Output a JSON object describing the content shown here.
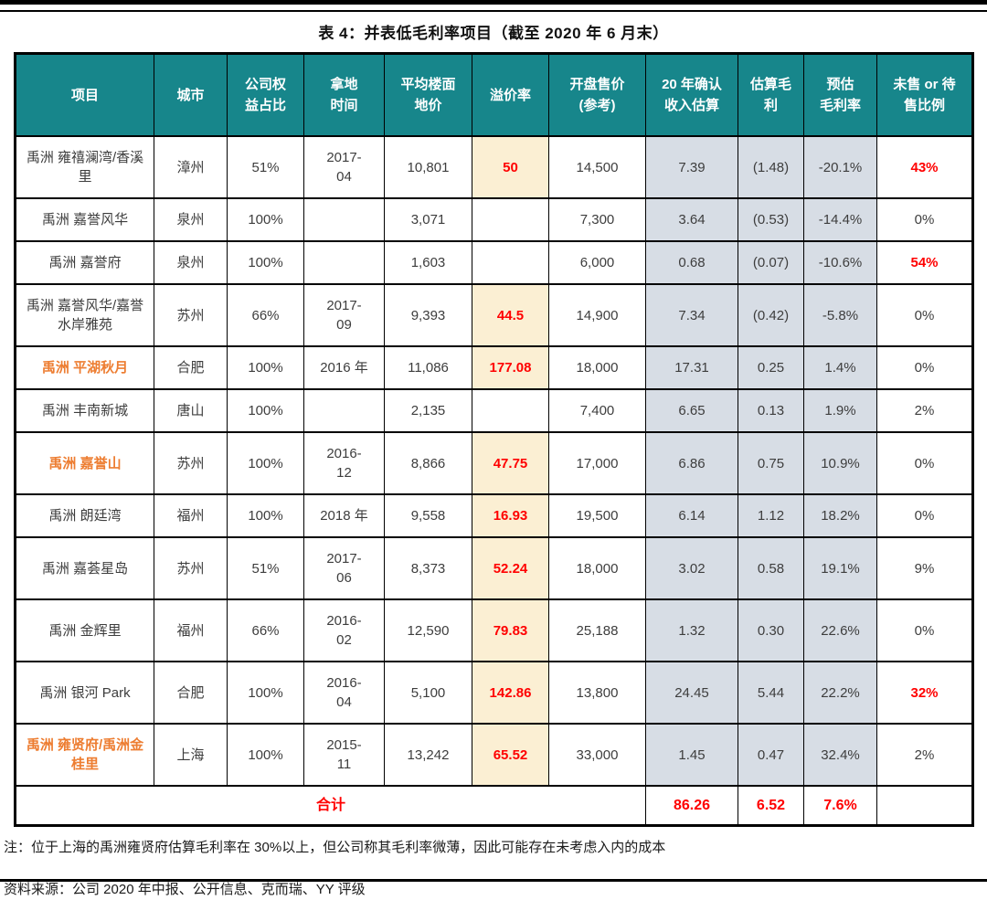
{
  "title": "表 4：并表低毛利率项目（截至 2020 年 6 月末）",
  "note": "注：位于上海的禹洲雍贤府估算毛利率在 30%以上，但公司称其毛利率微薄，因此可能存在未考虑入内的成本",
  "source": "资料来源：公司 2020 年中报、公开信息、克而瑞、YY 评级",
  "colors": {
    "header_teal": "#17868B",
    "premium_yellow": "#FBEFD3",
    "estimate_shade_blue": "#D7DDE5",
    "highlight_red": "#FF0000",
    "project_orange": "#ED7D31",
    "body_text": "#3D3D3D"
  },
  "table": {
    "columns": [
      "项目",
      "城市",
      "公司权\n益占比",
      "拿地\n时间",
      "平均楼面\n地价",
      "溢价率",
      "开盘售价\n(参考)",
      "20 年确认\n收入估算",
      "估算毛\n利",
      "预估\n毛利率",
      "未售 or 待\n售比例"
    ],
    "rows": [
      {
        "project": "禹洲 雍禧澜湾/香溪里",
        "city": "漳州",
        "equity": "51%",
        "land_date": "2017-\n04",
        "floor_price": "10,801",
        "premium": "50",
        "opening_price": "14,500",
        "revenue_2020": "7.39",
        "gross_profit": "(1.48)",
        "gross_margin": "-20.1%",
        "unsold": "43%",
        "project_orange": false,
        "unsold_red": true
      },
      {
        "project": "禹洲 嘉誉风华",
        "city": "泉州",
        "equity": "100%",
        "land_date": "",
        "floor_price": "3,071",
        "premium": "",
        "opening_price": "7,300",
        "revenue_2020": "3.64",
        "gross_profit": "(0.53)",
        "gross_margin": "-14.4%",
        "unsold": "0%",
        "project_orange": false,
        "unsold_red": false
      },
      {
        "project": "禹洲 嘉誉府",
        "city": "泉州",
        "equity": "100%",
        "land_date": "",
        "floor_price": "1,603",
        "premium": "",
        "opening_price": "6,000",
        "revenue_2020": "0.68",
        "gross_profit": "(0.07)",
        "gross_margin": "-10.6%",
        "unsold": "54%",
        "project_orange": false,
        "unsold_red": true
      },
      {
        "project": "禹洲 嘉誉风华/嘉誉水岸雅苑",
        "city": "苏州",
        "equity": "66%",
        "land_date": "2017-\n09",
        "floor_price": "9,393",
        "premium": "44.5",
        "opening_price": "14,900",
        "revenue_2020": "7.34",
        "gross_profit": "(0.42)",
        "gross_margin": "-5.8%",
        "unsold": "0%",
        "project_orange": false,
        "unsold_red": false
      },
      {
        "project": "禹洲 平湖秋月",
        "city": "合肥",
        "equity": "100%",
        "land_date": "2016 年",
        "floor_price": "11,086",
        "premium": "177.08",
        "opening_price": "18,000",
        "revenue_2020": "17.31",
        "gross_profit": "0.25",
        "gross_margin": "1.4%",
        "unsold": "0%",
        "project_orange": true,
        "unsold_red": false
      },
      {
        "project": "禹洲 丰南新城",
        "city": "唐山",
        "equity": "100%",
        "land_date": "",
        "floor_price": "2,135",
        "premium": "",
        "opening_price": "7,400",
        "revenue_2020": "6.65",
        "gross_profit": "0.13",
        "gross_margin": "1.9%",
        "unsold": "2%",
        "project_orange": false,
        "unsold_red": false
      },
      {
        "project": "禹洲 嘉誉山",
        "city": "苏州",
        "equity": "100%",
        "land_date": "2016-\n12",
        "floor_price": "8,866",
        "premium": "47.75",
        "opening_price": "17,000",
        "revenue_2020": "6.86",
        "gross_profit": "0.75",
        "gross_margin": "10.9%",
        "unsold": "0%",
        "project_orange": true,
        "unsold_red": false
      },
      {
        "project": "禹洲 朗廷湾",
        "city": "福州",
        "equity": "100%",
        "land_date": "2018 年",
        "floor_price": "9,558",
        "premium": "16.93",
        "opening_price": "19,500",
        "revenue_2020": "6.14",
        "gross_profit": "1.12",
        "gross_margin": "18.2%",
        "unsold": "0%",
        "project_orange": false,
        "unsold_red": false
      },
      {
        "project": "禹洲 嘉荟星岛",
        "city": "苏州",
        "equity": "51%",
        "land_date": "2017-\n06",
        "floor_price": "8,373",
        "premium": "52.24",
        "opening_price": "18,000",
        "revenue_2020": "3.02",
        "gross_profit": "0.58",
        "gross_margin": "19.1%",
        "unsold": "9%",
        "project_orange": false,
        "unsold_red": false
      },
      {
        "project": "禹洲 金辉里",
        "city": "福州",
        "equity": "66%",
        "land_date": "2016-\n02",
        "floor_price": "12,590",
        "premium": "79.83",
        "opening_price": "25,188",
        "revenue_2020": "1.32",
        "gross_profit": "0.30",
        "gross_margin": "22.6%",
        "unsold": "0%",
        "project_orange": false,
        "unsold_red": false
      },
      {
        "project": "禹洲 银河 Park",
        "city": "合肥",
        "equity": "100%",
        "land_date": "2016-\n04",
        "floor_price": "5,100",
        "premium": "142.86",
        "opening_price": "13,800",
        "revenue_2020": "24.45",
        "gross_profit": "5.44",
        "gross_margin": "22.2%",
        "unsold": "32%",
        "project_orange": false,
        "unsold_red": true
      },
      {
        "project": "禹洲 雍贤府/禹洲金桂里",
        "city": "上海",
        "equity": "100%",
        "land_date": "2015-\n11",
        "floor_price": "13,242",
        "premium": "65.52",
        "opening_price": "33,000",
        "revenue_2020": "1.45",
        "gross_profit": "0.47",
        "gross_margin": "32.4%",
        "unsold": "2%",
        "project_orange": true,
        "unsold_red": false
      }
    ],
    "total": {
      "label": "合计",
      "revenue_2020": "86.26",
      "gross_profit": "6.52",
      "gross_margin": "7.6%",
      "unsold": ""
    }
  }
}
